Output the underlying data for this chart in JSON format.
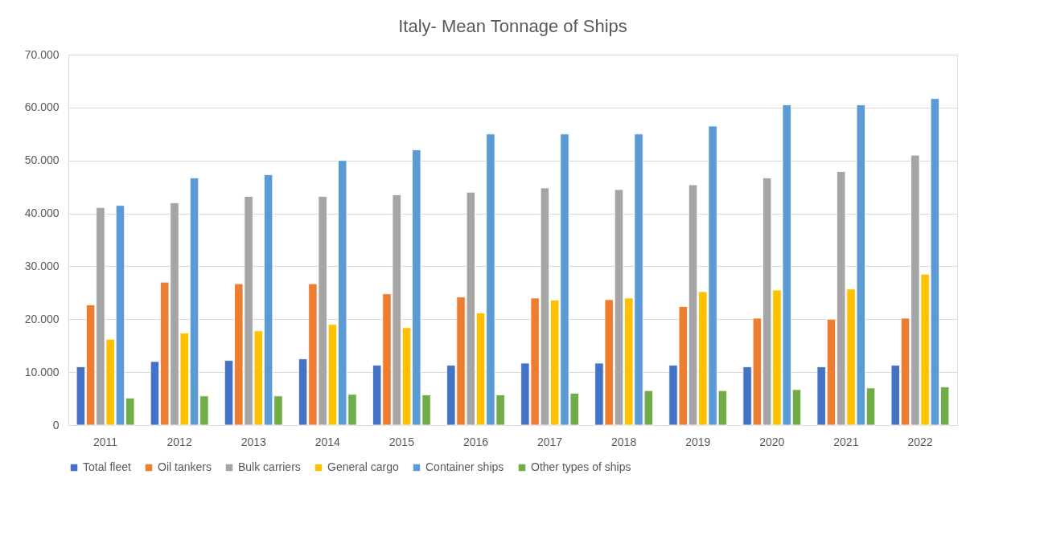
{
  "chart_data": {
    "type": "bar",
    "title": "Italy- Mean Tonnage of Ships",
    "categories": [
      "2011",
      "2012",
      "2013",
      "2014",
      "2015",
      "2016",
      "2017",
      "2018",
      "2019",
      "2020",
      "2021",
      "2022"
    ],
    "series": [
      {
        "name": "Total fleet",
        "color": "#4472c4",
        "values": [
          11000,
          12000,
          12200,
          12500,
          11300,
          11300,
          11700,
          11700,
          11300,
          11000,
          11000,
          11300
        ]
      },
      {
        "name": "Oil tankers",
        "color": "#ed7d31",
        "values": [
          22700,
          27000,
          26700,
          26700,
          24800,
          24200,
          24000,
          23700,
          22400,
          20200,
          20000,
          20200
        ]
      },
      {
        "name": "Bulk carriers",
        "color": "#a5a5a5",
        "values": [
          41100,
          42000,
          43200,
          43200,
          43500,
          44000,
          44800,
          44500,
          45400,
          46700,
          47900,
          51000
        ]
      },
      {
        "name": "General cargo",
        "color": "#ffc000",
        "values": [
          16200,
          17400,
          17800,
          19000,
          18400,
          21200,
          23600,
          24000,
          25200,
          25500,
          25700,
          28500
        ]
      },
      {
        "name": "Container ships",
        "color": "#5b9bd5",
        "values": [
          41500,
          46700,
          47300,
          50000,
          52000,
          55000,
          55000,
          55000,
          56500,
          60500,
          60500,
          61700
        ]
      },
      {
        "name": "Other types of ships",
        "color": "#70ad47",
        "values": [
          5100,
          5500,
          5500,
          5800,
          5700,
          5700,
          6000,
          6500,
          6500,
          6700,
          7000,
          7200
        ]
      }
    ],
    "ylim": [
      0,
      70000
    ],
    "yticks": [
      0,
      {
        "value": 10000,
        "label": "10.000"
      },
      {
        "value": 20000,
        "label": "20.000"
      },
      {
        "value": 30000,
        "label": "30.000"
      },
      {
        "value": 40000,
        "label": "40.000"
      },
      {
        "value": 50000,
        "label": "50.000"
      },
      {
        "value": 60000,
        "label": "60.000"
      },
      {
        "value": 70000,
        "label": "70.000"
      }
    ],
    "grid": "y",
    "legend": "bottom"
  }
}
